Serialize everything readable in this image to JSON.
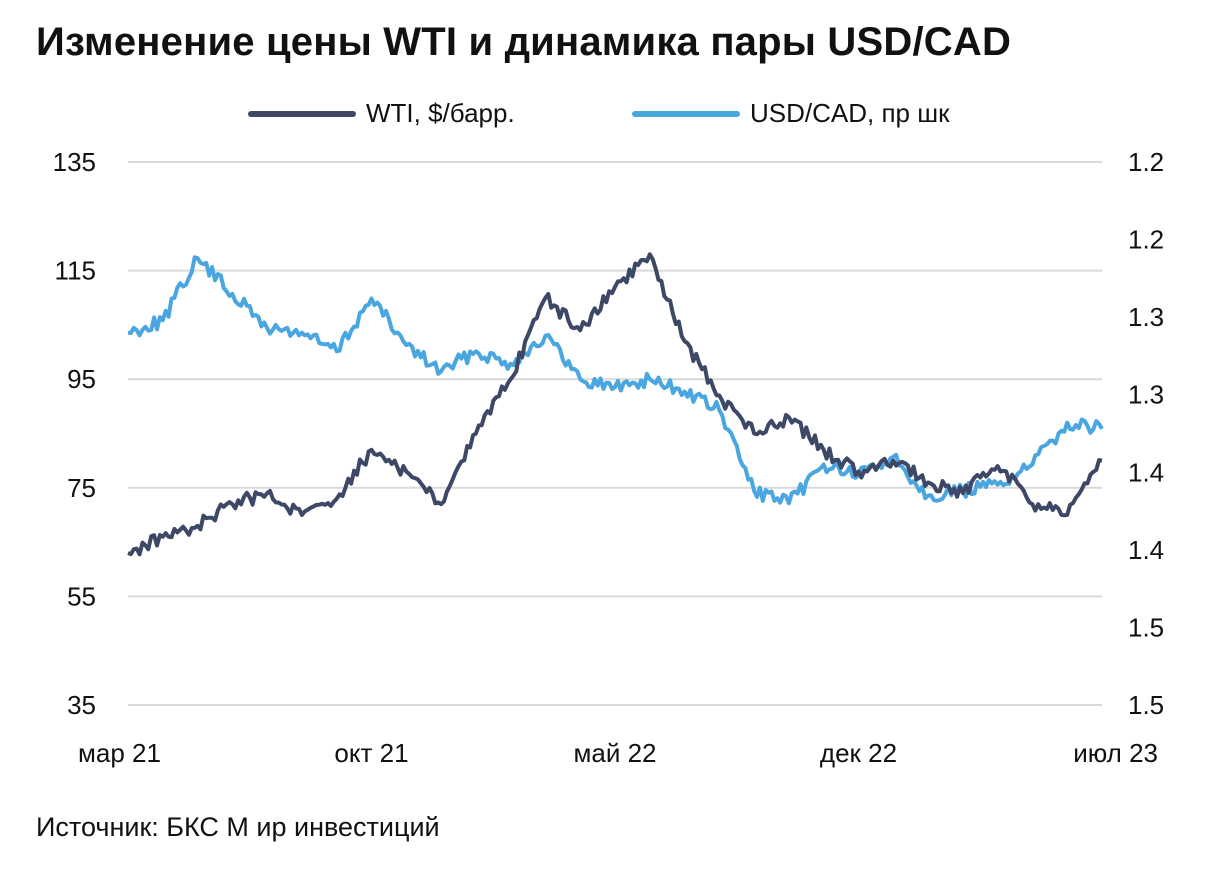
{
  "title": "Изменение цены WTI и динамика пары USD/CAD",
  "source": "Источник: БКС М ир инвестиций",
  "colors": {
    "wti": "#3d4766",
    "usdcad": "#4aa6e0",
    "grid": "#d9d9d9"
  },
  "chart_data": {
    "type": "line",
    "x": [
      "2021-03",
      "2021-04",
      "2021-05",
      "2021-06",
      "2021-07",
      "2021-08",
      "2021-09",
      "2021-10",
      "2021-11",
      "2021-12",
      "2022-01",
      "2022-02",
      "2022-03",
      "2022-04",
      "2022-05",
      "2022-06",
      "2022-07",
      "2022-08",
      "2022-09",
      "2022-10",
      "2022-11",
      "2022-12",
      "2023-01",
      "2023-02",
      "2023-03",
      "2023-04",
      "2023-05",
      "2023-06",
      "2023-07"
    ],
    "x_ticks": [
      "мар 21",
      "окт 21",
      "май 22",
      "дек 22",
      "июл 23"
    ],
    "y_left": {
      "ticks": [
        "135",
        "115",
        "95",
        "75",
        "55",
        "35"
      ],
      "range": [
        35,
        135
      ]
    },
    "y_right": {
      "ticks": [
        "1.2",
        "1.2",
        "1.3",
        "1.3",
        "1.4",
        "1.4",
        "1.5",
        "1.5"
      ],
      "range": [
        1.15,
        1.5
      ],
      "inverted": true
    },
    "series": [
      {
        "name": "WTI, $/барр.",
        "axis": "left",
        "values": [
          63,
          66,
          68,
          72,
          74,
          70,
          73,
          82,
          78,
          72,
          85,
          95,
          110,
          104,
          112,
          118,
          102,
          92,
          85,
          88,
          82,
          78,
          80,
          76,
          74,
          79,
          72,
          70,
          80
        ]
      },
      {
        "name": "USD/CAD, пр шк",
        "axis": "right",
        "values": [
          1.26,
          1.252,
          1.212,
          1.235,
          1.257,
          1.26,
          1.272,
          1.238,
          1.268,
          1.285,
          1.272,
          1.28,
          1.262,
          1.29,
          1.295,
          1.29,
          1.298,
          1.31,
          1.362,
          1.37,
          1.345,
          1.352,
          1.34,
          1.365,
          1.362,
          1.358,
          1.345,
          1.318,
          1.322
        ]
      }
    ]
  }
}
